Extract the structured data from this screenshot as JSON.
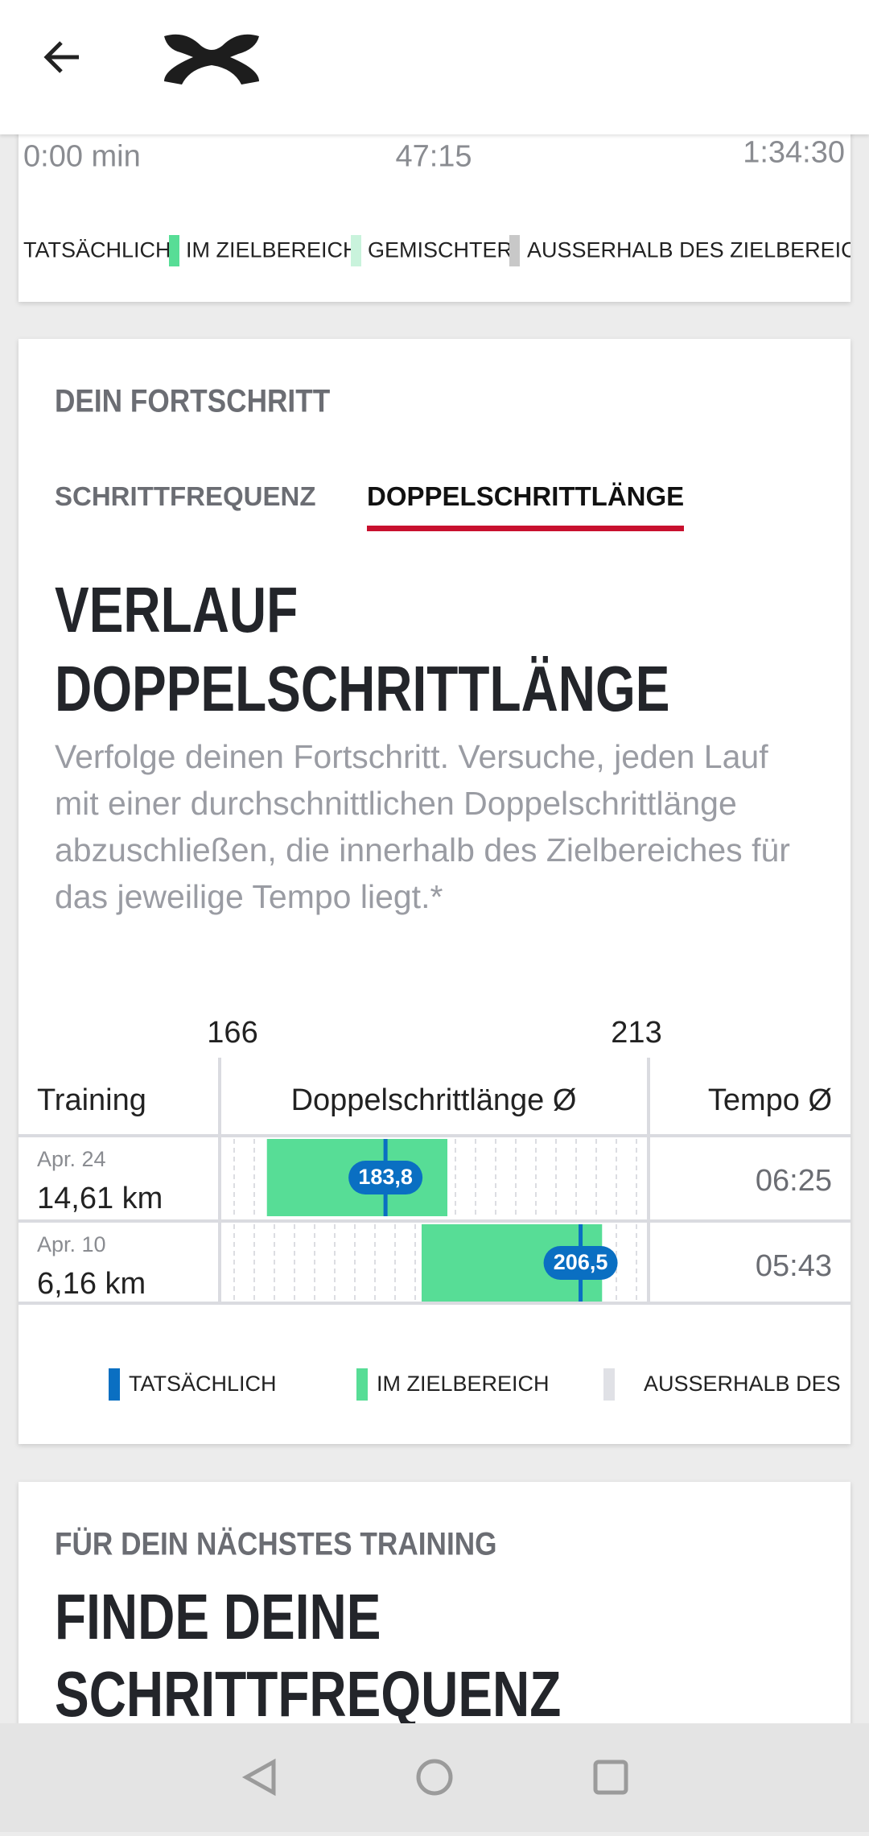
{
  "pace_card": {
    "time_labels": [
      "0:00 min",
      "47:15",
      "1:34:30"
    ],
    "legend": [
      "TATSÄCHLICH",
      "IM ZIELBEREICH",
      "GEMISCHTER",
      "AUSSERHALB DES ZIELBEREICH"
    ]
  },
  "progress": {
    "section_title": "DEIN FORTSCHRITT",
    "tabs": [
      "SCHRITTFREQUENZ",
      "DOPPELSCHRITTLÄNGE"
    ],
    "active_tab": 1,
    "title_lines": [
      "VERLAUF",
      "DOPPELSCHRITTLÄNGE"
    ],
    "description": "Verfolge deinen Fortschritt. Versuche, jeden Lauf mit einer durchschnittlichen Doppelschrittlänge abzuschließen, die innerhalb des Zielbereiches für das jeweilige Tempo liegt.*",
    "chart": {
      "scale": [
        166,
        213
      ],
      "columns": [
        "Training",
        "Doppelschrittlänge Ø",
        "Tempo Ø"
      ],
      "colors": {
        "actual": "#0a6fc2",
        "target": "#57dd96",
        "outside": "#e0e1e6"
      },
      "rows": [
        {
          "date": "Apr. 24",
          "distance": "14,61 km",
          "target_range": [
            170,
            191
          ],
          "value": 183.8,
          "value_label": "183,8",
          "pace": "06:25"
        },
        {
          "date": "Apr. 10",
          "distance": "6,16 km",
          "target_range": [
            188,
            209
          ],
          "value": 206.5,
          "value_label": "206,5",
          "pace": "05:43"
        }
      ],
      "legend": [
        "TATSÄCHLICH",
        "IM ZIELBEREICH",
        "AUSSERHALB DES"
      ]
    }
  },
  "next": {
    "section_title": "FÜR DEIN NÄCHSTES TRAINING",
    "title_lines": [
      "FINDE DEINE",
      "SCHRITTFREQUENZ"
    ]
  }
}
